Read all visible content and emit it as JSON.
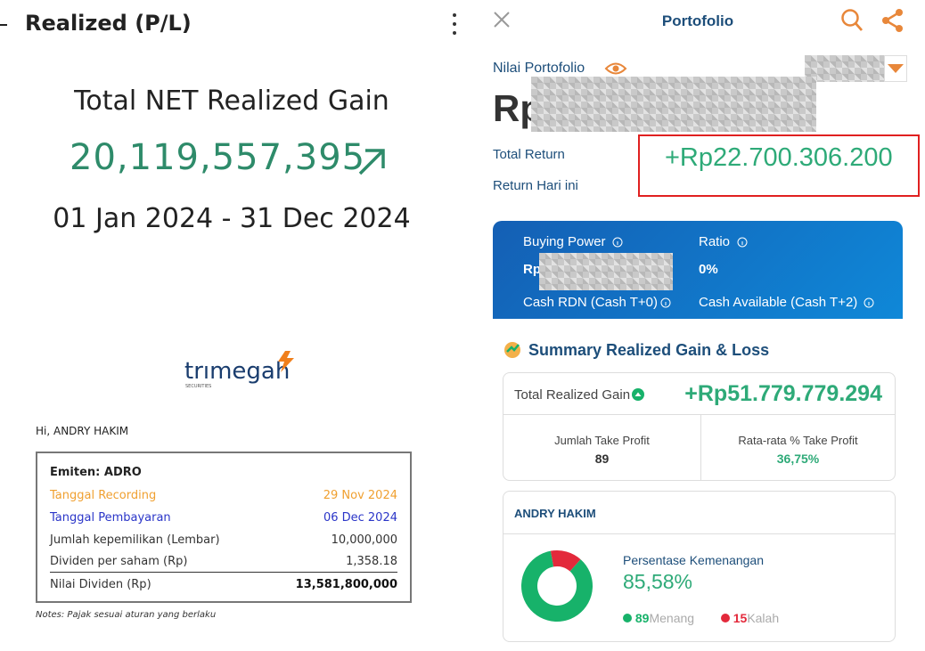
{
  "left_panel": {
    "header": {
      "title": "Realized (P/L)"
    },
    "summary": {
      "heading": "Total NET Realized Gain",
      "value": "20,119,557,395",
      "period": "01 Jan 2024 - 31 Dec 2024"
    },
    "dividend_notice": {
      "logo": "trımegah",
      "logo_sub": "SECURITIES",
      "greeting": "Hi, ANDRY HAKIM",
      "table": {
        "title": "Emiten: ADRO",
        "rows": [
          [
            "Tanggal Recording",
            "29 Nov 2024"
          ],
          [
            "Tanggal Pembayaran",
            "06 Dec 2024"
          ],
          [
            "Jumlah kepemilikan (Lembar)",
            "10,000,000"
          ],
          [
            "Dividen per saham (Rp)",
            "1,358.18"
          ],
          [
            "Nilai Dividen (Rp)",
            "13,581,800,000"
          ]
        ]
      },
      "notes": "Notes: Pajak sesuai aturan yang berlaku"
    }
  },
  "right_panel": {
    "header": {
      "title": "Portofolio"
    },
    "portfolio": {
      "label": "Nilai Portofolio",
      "currency": "Rp",
      "total_return_label": "Total Return",
      "total_return_value": "+Rp22.700.306.200",
      "daily_return_label": "Return Hari ini"
    },
    "account_card": {
      "buying_power_label": "Buying Power",
      "buying_power_currency": "Rp",
      "ratio_label": "Ratio",
      "ratio_value": "0%",
      "cash_rdn_label": "Cash RDN (Cash T+0)",
      "cash_available_label": "Cash Available (Cash T+2)"
    },
    "summary": {
      "title": "Summary Realized Gain & Loss",
      "total_label": "Total Realized Gain",
      "total_value": "+Rp51.779.779.294",
      "take_profit_count_label": "Jumlah Take Profit",
      "take_profit_count": "89",
      "take_profit_avg_label": "Rata-rata % Take Profit",
      "take_profit_avg": "36,75%"
    },
    "win_loss": {
      "name": "ANDRY HAKIM",
      "title": "Persentase Kemenangan",
      "percentage": "85,58%",
      "wins": 89,
      "wins_label": "Menang",
      "losses": 15,
      "losses_label": "Kalah",
      "win_color": "#17b26a",
      "loss_color": "#e3293b"
    }
  }
}
